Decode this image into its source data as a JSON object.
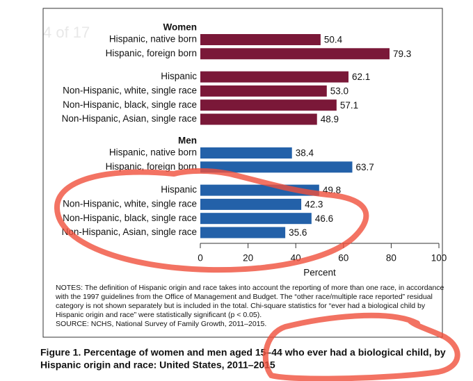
{
  "chart_data": {
    "type": "bar",
    "page_indicator": "4 of 17",
    "groups": [
      {
        "name": "Women",
        "color": "#7a1838",
        "categories": [
          "Hispanic, native born",
          "Hispanic, foreign born",
          "Hispanic",
          "Non-Hispanic, white, single race",
          "Non-Hispanic, black, single race",
          "Non-Hispanic, Asian, single race"
        ],
        "values": [
          50.4,
          79.3,
          62.1,
          53.0,
          57.1,
          48.9
        ],
        "value_labels": [
          "50.4",
          "79.3",
          "62.1",
          "53.0",
          "57.1",
          "48.9"
        ]
      },
      {
        "name": "Men",
        "color": "#2361a9",
        "categories": [
          "Hispanic, native born",
          "Hispanic, foreign born",
          "Hispanic",
          "Non-Hispanic, white, single race",
          "Non-Hispanic, black, single race",
          "Non-Hispanic, Asian, single race"
        ],
        "values": [
          38.4,
          63.7,
          49.8,
          42.3,
          46.6,
          35.6
        ],
        "value_labels": [
          "38.4",
          "63.7",
          "49.8",
          "42.3",
          "46.6",
          "35.6"
        ]
      }
    ],
    "xlabel": "Percent",
    "xlim": [
      0,
      100
    ],
    "xticks": [
      0,
      20,
      40,
      60,
      80,
      100
    ],
    "notes": [
      "NOTES: The definition of Hispanic origin and race takes into account the reporting of more than one race, in accordance",
      "with the 1997 guidelines from the Office of Management and Budget. The “other race/multiple race reported” residual",
      "category is not shown separately but is included in the total. Chi-square statistics for “ever had a biological child by",
      "Hispanic origin and race” were statistically significant (p < 0.05).",
      "SOURCE: NCHS, National Survey of Family Growth, 2011–2015."
    ],
    "caption": [
      "Figure 1. Percentage of women and men aged 15–44 who ever had a biological child, by",
      "Hispanic origin and race: United States, 2011–2015"
    ]
  }
}
